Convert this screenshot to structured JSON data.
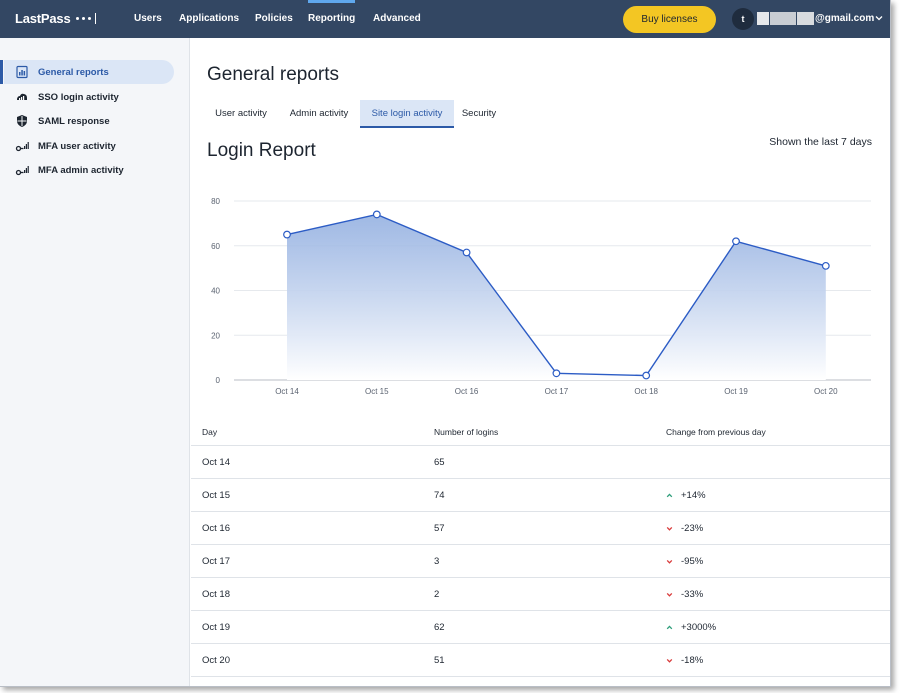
{
  "app": {
    "brand": "LastPass",
    "nav": [
      {
        "label": "Users",
        "active": false
      },
      {
        "label": "Applications",
        "active": false
      },
      {
        "label": "Policies",
        "active": false
      },
      {
        "label": "Reporting",
        "active": true
      },
      {
        "label": "Advanced",
        "active": false
      }
    ],
    "buy_label": "Buy licenses",
    "avatar_initial": "t",
    "email_suffix": "@gmail.com"
  },
  "sidebar": {
    "items": [
      {
        "label": "General reports",
        "icon": "report-icon",
        "active": true
      },
      {
        "label": "SSO login activity",
        "icon": "cloud-signal-icon",
        "active": false
      },
      {
        "label": "SAML response",
        "icon": "shield-icon",
        "active": false
      },
      {
        "label": "MFA user activity",
        "icon": "key-signal-icon",
        "active": false
      },
      {
        "label": "MFA admin activity",
        "icon": "key-signal-icon",
        "active": false
      }
    ]
  },
  "main": {
    "title": "General reports",
    "tabs": [
      {
        "label": "User activity",
        "active": false
      },
      {
        "label": "Admin activity",
        "active": false
      },
      {
        "label": "Site login activity",
        "active": true
      },
      {
        "label": "Security",
        "active": false
      }
    ],
    "report_title": "Login Report",
    "range_note": "Shown the last 7 days"
  },
  "chart_data": {
    "type": "area",
    "categories": [
      "Oct 14",
      "Oct 15",
      "Oct 16",
      "Oct 17",
      "Oct 18",
      "Oct 19",
      "Oct 20"
    ],
    "values": [
      65,
      74,
      57,
      3,
      2,
      62,
      51
    ],
    "ylim": [
      0,
      80
    ],
    "yticks": [
      0,
      20,
      40,
      60,
      80
    ],
    "grid": true,
    "legend": "none",
    "colors": {
      "line": "#2c5cc5",
      "fill_top": "#8eacdf",
      "fill_bottom": "#ffffff"
    }
  },
  "table": {
    "headers": [
      "Day",
      "Number of logins",
      "Change from previous day"
    ],
    "rows": [
      {
        "day": "Oct 14",
        "logins": "65",
        "change": "",
        "direction": "none"
      },
      {
        "day": "Oct 15",
        "logins": "74",
        "change": "+14%",
        "direction": "up"
      },
      {
        "day": "Oct 16",
        "logins": "57",
        "change": "-23%",
        "direction": "down"
      },
      {
        "day": "Oct 17",
        "logins": "3",
        "change": "-95%",
        "direction": "down"
      },
      {
        "day": "Oct 18",
        "logins": "2",
        "change": "-33%",
        "direction": "down"
      },
      {
        "day": "Oct 19",
        "logins": "62",
        "change": "+3000%",
        "direction": "up"
      },
      {
        "day": "Oct 20",
        "logins": "51",
        "change": "-18%",
        "direction": "down"
      }
    ],
    "colors": {
      "up": "#2e9e7a",
      "down": "#d93b3b"
    }
  }
}
